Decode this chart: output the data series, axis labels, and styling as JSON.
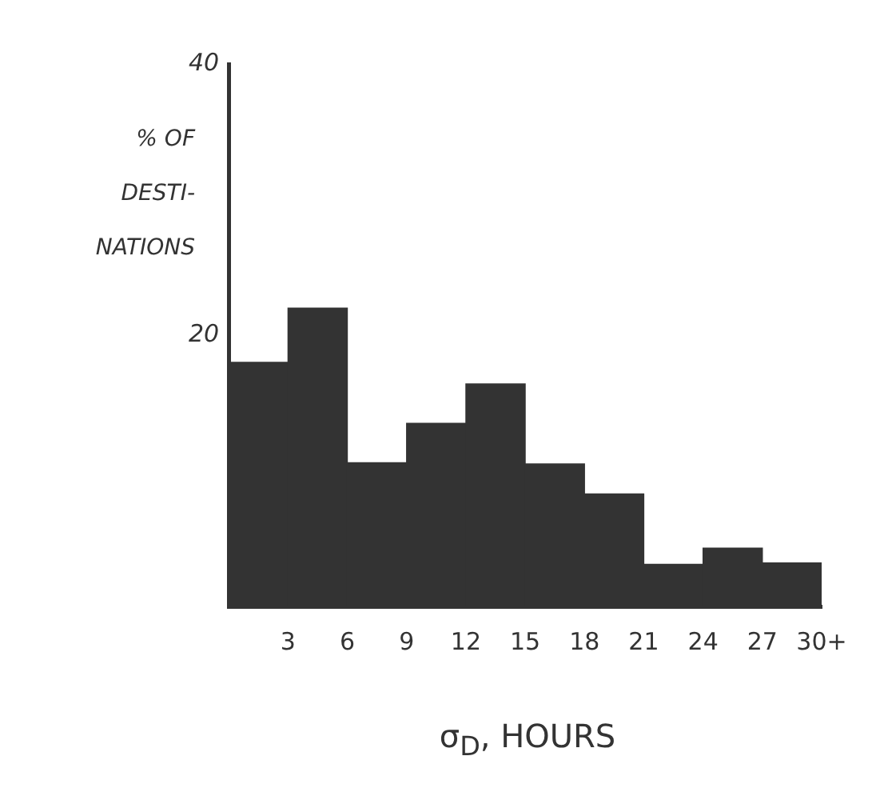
{
  "chart_data": {
    "type": "histogram",
    "xlabel": "σ$_{D}$, HOURS",
    "ylabel": "% OF DESTI- NATIONS",
    "bins": [
      0,
      3,
      6,
      9,
      12,
      15,
      18,
      21,
      24,
      27,
      30
    ],
    "values": [
      18,
      22,
      10.6,
      13.5,
      16.4,
      10.5,
      8.3,
      3.1,
      4.3,
      3.2
    ],
    "color": "#333333",
    "xlim": [
      0,
      30
    ],
    "xticks": [
      3,
      6,
      9,
      12,
      15,
      18,
      21,
      24,
      27,
      {
        "value": 30,
        "label": "30+"
      }
    ],
    "ylim": [
      0,
      40
    ],
    "yticks": [
      20,
      40
    ],
    "grid": false,
    "legend": false
  }
}
